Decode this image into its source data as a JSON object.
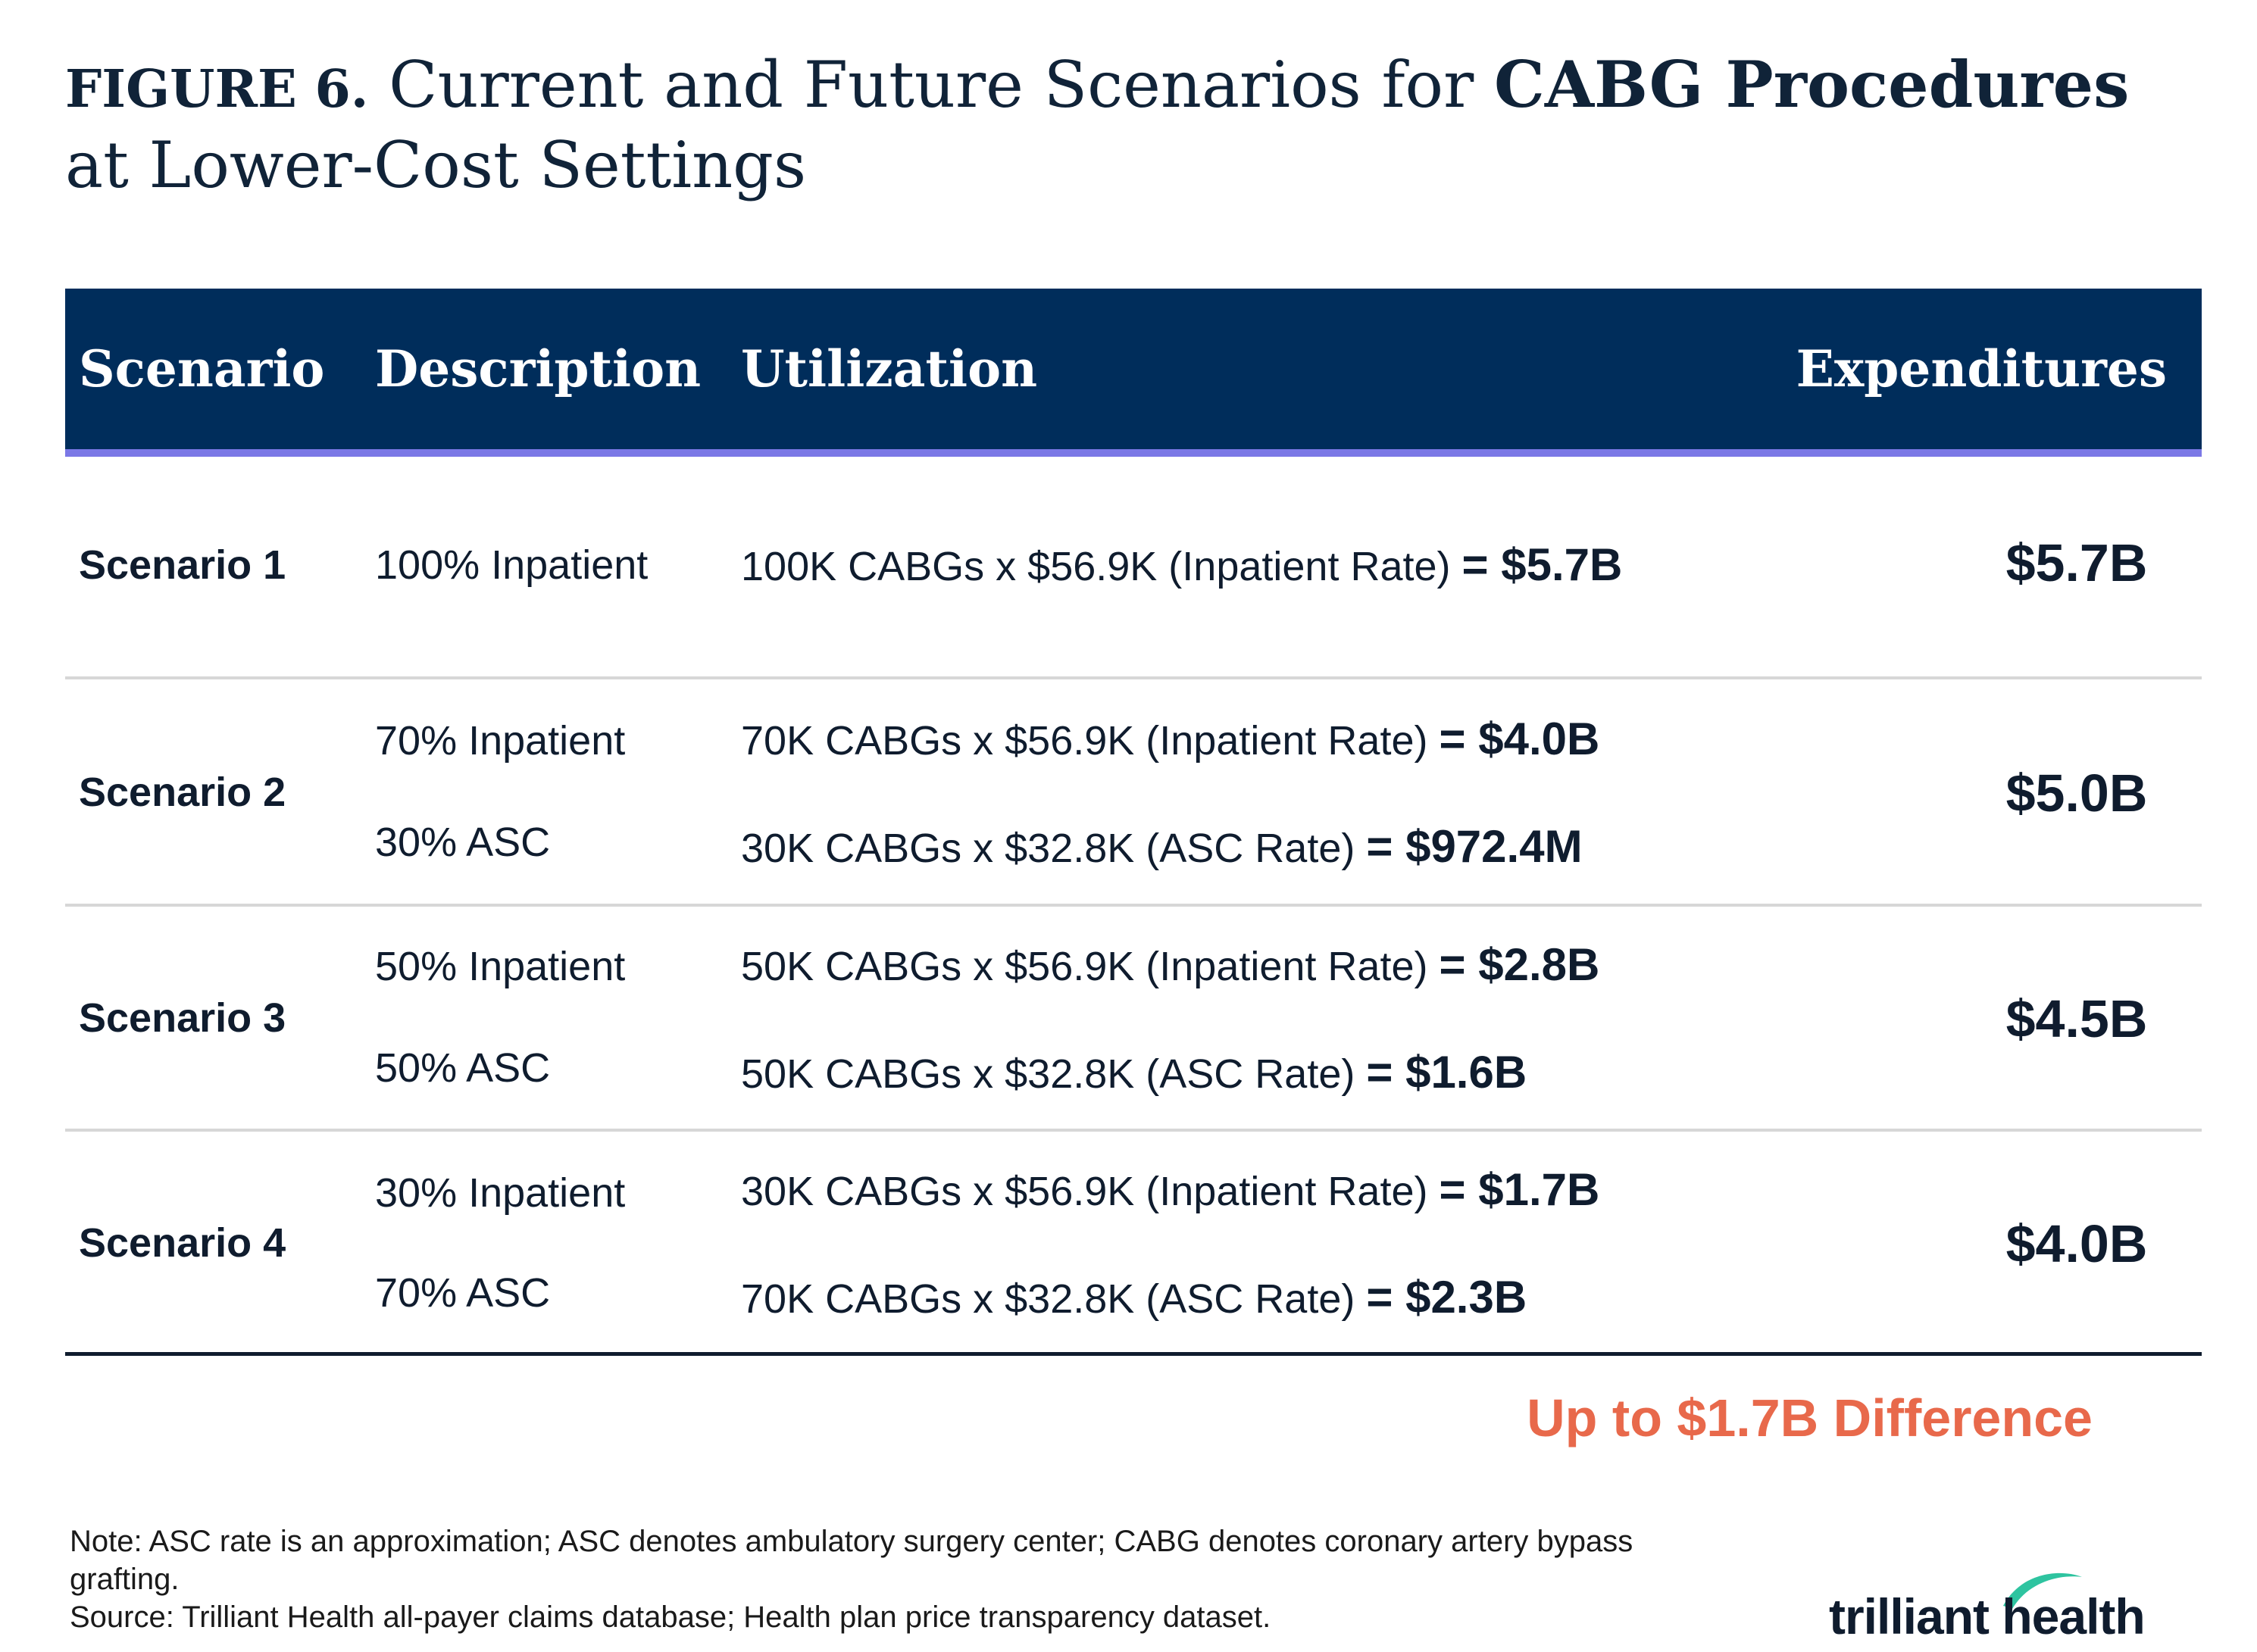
{
  "title": {
    "figure_label": "FIGURE 6.",
    "text_before": "Current and Future Scenarios for",
    "text_bold": "CABG Procedures",
    "text_after": "at Lower-Cost Settings"
  },
  "table": {
    "headers": {
      "scenario": "Scenario",
      "description": "Description",
      "utilization": "Utilization",
      "expenditures": "Expenditures"
    },
    "rows": [
      {
        "scenario": "Scenario 1",
        "descriptions": [
          "100% Inpatient"
        ],
        "utilization": [
          {
            "text": "100K CABGs x $56.9K (Inpatient Rate)",
            "result": "= $5.7B"
          }
        ],
        "expenditure": "$5.7B"
      },
      {
        "scenario": "Scenario 2",
        "descriptions": [
          "70% Inpatient",
          "30% ASC"
        ],
        "utilization": [
          {
            "text": "70K CABGs x $56.9K (Inpatient Rate)",
            "result": "= $4.0B"
          },
          {
            "text": "30K CABGs x $32.8K (ASC Rate)",
            "result": "= $972.4M"
          }
        ],
        "expenditure": "$5.0B"
      },
      {
        "scenario": "Scenario 3",
        "descriptions": [
          "50% Inpatient",
          "50% ASC"
        ],
        "utilization": [
          {
            "text": "50K CABGs x $56.9K (Inpatient Rate)",
            "result": "= $2.8B"
          },
          {
            "text": "50K CABGs x $32.8K (ASC Rate)",
            "result": "= $1.6B"
          }
        ],
        "expenditure": "$4.5B"
      },
      {
        "scenario": "Scenario 4",
        "descriptions": [
          "30% Inpatient",
          "70% ASC"
        ],
        "utilization": [
          {
            "text": "30K CABGs x $56.9K (Inpatient Rate)",
            "result": "= $1.7B"
          },
          {
            "text": "70K CABGs x $32.8K (ASC Rate)",
            "result": "= $2.3B"
          }
        ],
        "expenditure": "$4.0B"
      }
    ]
  },
  "difference": "Up to $1.7B Difference",
  "notes": {
    "note": "Note: ASC rate is an approximation; ASC denotes ambulatory surgery center; CABG denotes coronary artery bypass grafting.",
    "source": "Source: Trilliant Health all-payer claims database; Health plan price transparency dataset."
  },
  "logo": {
    "text": "trilliant health",
    "icon": "swoosh-logo-icon"
  },
  "colors": {
    "header_bg": "#002d5b",
    "header_underline": "#7b78e6",
    "accent": "#e8694b",
    "logo_green": "#2ec4a0"
  }
}
